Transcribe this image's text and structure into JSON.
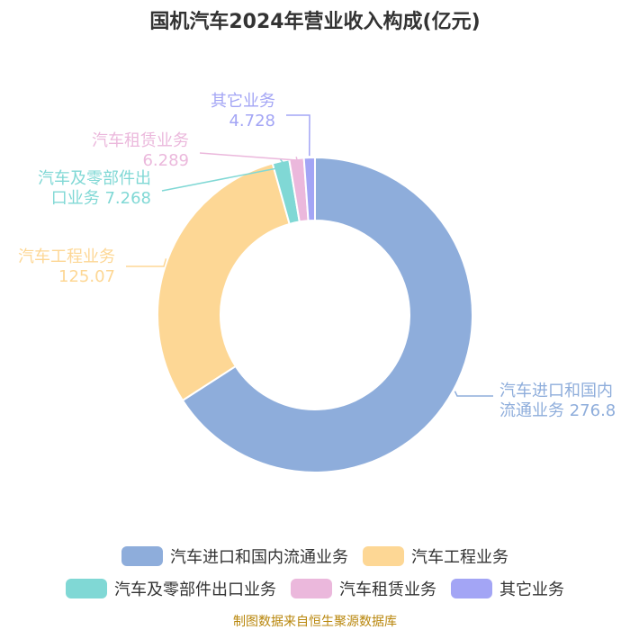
{
  "title": "国机汽车2024年营业收入构成(亿元)",
  "source": "制图数据来自恒生聚源数据库",
  "chart_data": {
    "type": "pie",
    "donut": true,
    "title": "国机汽车2024年营业收入构成(亿元)",
    "series": [
      {
        "name": "汽车进口和国内流通业务",
        "label_lines": [
          "汽车进口和国内",
          "流通业务 276.8"
        ],
        "value": 276.8,
        "color": "#8eaddb"
      },
      {
        "name": "汽车工程业务",
        "label_lines": [
          "汽车工程业务",
          "125.07"
        ],
        "value": 125.07,
        "color": "#fdd795"
      },
      {
        "name": "汽车及零部件出口业务",
        "label_lines": [
          "汽车及零部件出",
          "口业务 7.268"
        ],
        "value": 7.268,
        "color": "#80d8d5"
      },
      {
        "name": "汽车租赁业务",
        "label_lines": [
          "汽车租赁业务",
          "6.289"
        ],
        "value": 6.289,
        "color": "#ebb8dc"
      },
      {
        "name": "其它业务",
        "label_lines": [
          "其它业务",
          "4.728"
        ],
        "value": 4.728,
        "color": "#a3a5f5"
      }
    ],
    "legend_position": "bottom"
  },
  "legend_rows": [
    [
      {
        "label": "汽车进口和国内流通业务",
        "color": "#8eaddb"
      },
      {
        "label": "汽车工程业务",
        "color": "#fdd795"
      }
    ],
    [
      {
        "label": "汽车及零部件出口业务",
        "color": "#80d8d5"
      },
      {
        "label": "汽车租赁业务",
        "color": "#ebb8dc"
      },
      {
        "label": "其它业务",
        "color": "#a3a5f5"
      }
    ]
  ]
}
